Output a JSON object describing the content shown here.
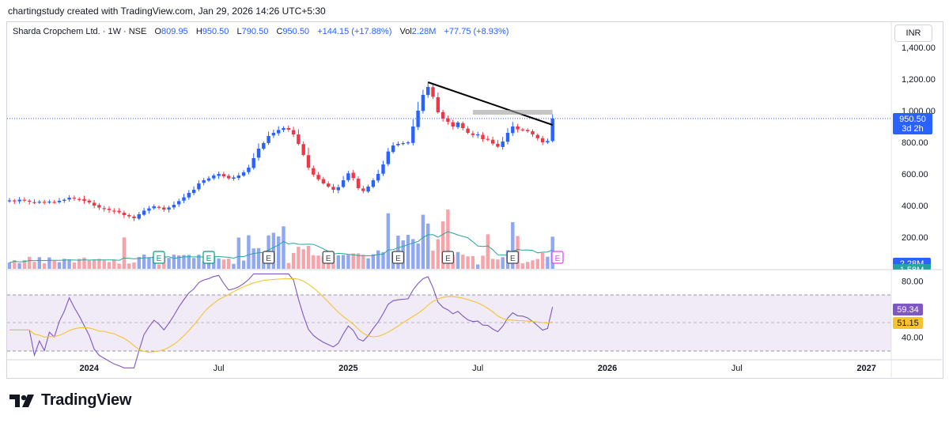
{
  "caption": "chartingstudy created with TradingView.com, Jan 29, 2026 14:26 UTC+5:30",
  "legend": {
    "symbol": "Sharda Cropchem Ltd. · 1W · NSE",
    "o_label": "O",
    "o_value": "809.95",
    "h_label": "H",
    "h_value": "950.50",
    "l_label": "L",
    "l_value": "790.50",
    "c_label": "C",
    "c_value": "950.50",
    "change": "+144.15 (+17.88%)",
    "vol_label": "Vol",
    "vol_value": "2.28M",
    "vol_change": "+77.75 (+8.93%)"
  },
  "currency": "INR",
  "price_badge": {
    "price": "950.50",
    "countdown": "3d 2h",
    "color": "#2962ff"
  },
  "volume_badges": {
    "current": "2.28M",
    "ma": "1.58M"
  },
  "rsi_badges": {
    "rsi": "59.34",
    "rsi_ma": "51.15"
  },
  "brand": {
    "name": "TradingView"
  },
  "colors": {
    "up": "#2962ff",
    "down": "#f23645",
    "volume_up": "#8fa8f0",
    "volume_down": "#f6a3a9",
    "rsi": "#7e57c2",
    "rsi_ma": "#f4c430",
    "trendline": "#000000"
  },
  "chart_data": {
    "type": "candlestick",
    "title": "Sharda Cropchem Ltd. · 1W · NSE",
    "price_axis": {
      "ticks": [
        "1,400.00",
        "1,200.00",
        "1,000.00",
        "800.00",
        "600.00",
        "400.00",
        "200.00"
      ],
      "tick_values": [
        1400,
        1200,
        1000,
        800,
        600,
        400,
        200
      ],
      "range": [
        70,
        1530
      ]
    },
    "time_axis": {
      "ticks": [
        "2024",
        "Jul",
        "2025",
        "Jul",
        "2026",
        "Jul",
        "2027"
      ],
      "tick_index": [
        16,
        42,
        68,
        94,
        120,
        146,
        172
      ]
    },
    "series": {
      "close": [
        433,
        428,
        437,
        431,
        425,
        420,
        424,
        418,
        425,
        422,
        430,
        437,
        450,
        444,
        438,
        430,
        420,
        400,
        387,
        380,
        372,
        364,
        358,
        340,
        332,
        320,
        345,
        368,
        382,
        395,
        387,
        375,
        388,
        405,
        428,
        452,
        480,
        500,
        540,
        560,
        572,
        590,
        600,
        585,
        572,
        578,
        590,
        610,
        640,
        700,
        760,
        795,
        840,
        860,
        878,
        890,
        880,
        850,
        790,
        720,
        640,
        596,
        566,
        540,
        520,
        500,
        516,
        560,
        604,
        574,
        510,
        492,
        520,
        560,
        600,
        660,
        742,
        780,
        790,
        795,
        800,
        900,
        1000,
        1100,
        1150,
        1088,
        990,
        950,
        930,
        900,
        925,
        890,
        860,
        846,
        850,
        820,
        818,
        792,
        772,
        805,
        860,
        900,
        882,
        880,
        870,
        850,
        826,
        800,
        808,
        950
      ],
      "events": {
        "earnings_markers": [
          "E",
          "E",
          "E",
          "E",
          "E",
          "E",
          "E",
          "E"
        ]
      }
    },
    "volume": {
      "current": "2.28M",
      "moving_average": "1.58M"
    },
    "rsi": {
      "levels": [
        "80.00",
        "40.00"
      ],
      "level_values": [
        80,
        40
      ],
      "upper_band": 70,
      "lower_band": 30,
      "value": 59.34,
      "ma_value": 51.15
    },
    "trendline": {
      "from": {
        "index": 84,
        "price": 1180
      },
      "to": {
        "index": 109,
        "price": 910
      }
    },
    "resistance_zone": {
      "from_index": 93,
      "to_index": 109,
      "price": 990
    },
    "last_price_line": 950.5
  }
}
